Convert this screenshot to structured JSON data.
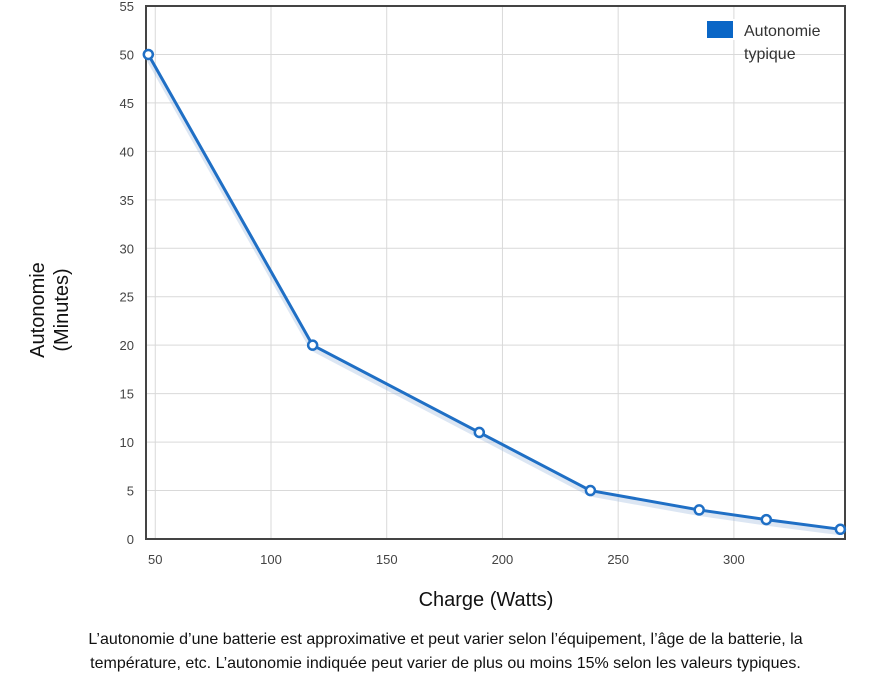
{
  "chart_data": {
    "type": "line",
    "xlabel": "Charge (Watts)",
    "ylabel_lines": [
      "Autonomie",
      "(Minutes)"
    ],
    "xlim": [
      46,
      348
    ],
    "ylim": [
      0,
      55
    ],
    "x_ticks": [
      50,
      100,
      150,
      200,
      250,
      300
    ],
    "y_ticks": [
      0,
      5,
      10,
      15,
      20,
      25,
      30,
      35,
      40,
      45,
      50,
      55
    ],
    "grid": true,
    "legend_position": "top-right",
    "series": [
      {
        "name_lines": [
          "Autonomie",
          "typique"
        ],
        "color": "#1f6fc5",
        "points": [
          {
            "x": 47,
            "y": 50
          },
          {
            "x": 118,
            "y": 20
          },
          {
            "x": 190,
            "y": 11
          },
          {
            "x": 238,
            "y": 5
          },
          {
            "x": 285,
            "y": 3
          },
          {
            "x": 314,
            "y": 2
          },
          {
            "x": 346,
            "y": 1
          }
        ]
      }
    ]
  },
  "caption": {
    "line1": "L’autonomie d’une batterie est approximative et peut varier selon l’équipement, l’âge de la batterie, la",
    "line2": "température, etc. L’autonomie indiquée peut varier de plus ou moins 15% selon les valeurs typiques."
  }
}
